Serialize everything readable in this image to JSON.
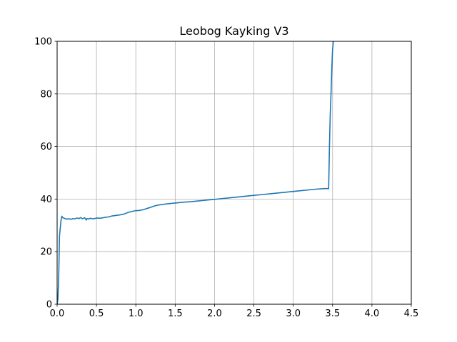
{
  "chart_data": {
    "type": "line",
    "title": "Leobog Kayking V3",
    "xlabel": "",
    "ylabel": "",
    "xlim": [
      0,
      4.5
    ],
    "ylim": [
      0,
      100
    ],
    "x_ticks": [
      0.0,
      0.5,
      1.0,
      1.5,
      2.0,
      2.5,
      3.0,
      3.5,
      4.0,
      4.5
    ],
    "x_tick_labels": [
      "0.0",
      "0.5",
      "1.0",
      "1.5",
      "2.0",
      "2.5",
      "3.0",
      "3.5",
      "4.0",
      "4.5"
    ],
    "y_ticks": [
      0,
      20,
      40,
      60,
      80,
      100
    ],
    "y_tick_labels": [
      "0",
      "20",
      "40",
      "60",
      "80",
      "100"
    ],
    "grid": true,
    "legend": "none",
    "series": [
      {
        "color": "#1f77b4",
        "x": [
          0.0,
          0.01,
          0.02,
          0.03,
          0.04,
          0.05,
          0.06,
          0.07,
          0.08,
          0.1,
          0.12,
          0.15,
          0.18,
          0.2,
          0.22,
          0.25,
          0.28,
          0.3,
          0.32,
          0.35,
          0.37,
          0.38,
          0.4,
          0.42,
          0.45,
          0.48,
          0.5,
          0.55,
          0.6,
          0.65,
          0.7,
          0.75,
          0.8,
          0.85,
          0.9,
          0.95,
          1.0,
          1.05,
          1.1,
          1.15,
          1.2,
          1.25,
          1.3,
          1.4,
          1.5,
          1.6,
          1.7,
          1.8,
          1.9,
          2.0,
          2.1,
          2.2,
          2.3,
          2.4,
          2.5,
          2.6,
          2.7,
          2.8,
          2.9,
          3.0,
          3.1,
          3.2,
          3.3,
          3.4,
          3.45,
          3.46,
          3.47,
          3.48,
          3.49,
          3.5,
          3.51,
          3.52
        ],
        "y": [
          0,
          2,
          10,
          26,
          29,
          32,
          33.5,
          33,
          32.8,
          32.6,
          32.4,
          32.5,
          32.3,
          32.6,
          32.4,
          32.8,
          32.6,
          33,
          32.5,
          32.9,
          32.0,
          32.6,
          32.4,
          32.7,
          32.5,
          32.6,
          32.8,
          32.7,
          33.0,
          33.2,
          33.6,
          33.8,
          34.0,
          34.3,
          34.9,
          35.3,
          35.6,
          35.7,
          36.0,
          36.5,
          37.0,
          37.5,
          37.8,
          38.2,
          38.5,
          38.8,
          39.0,
          39.3,
          39.6,
          39.9,
          40.2,
          40.5,
          40.8,
          41.1,
          41.4,
          41.7,
          42.0,
          42.3,
          42.6,
          42.9,
          43.2,
          43.5,
          43.8,
          44.0,
          44.0,
          60.0,
          72.0,
          80.0,
          90.0,
          97.0,
          100.0,
          102.0
        ]
      }
    ]
  }
}
